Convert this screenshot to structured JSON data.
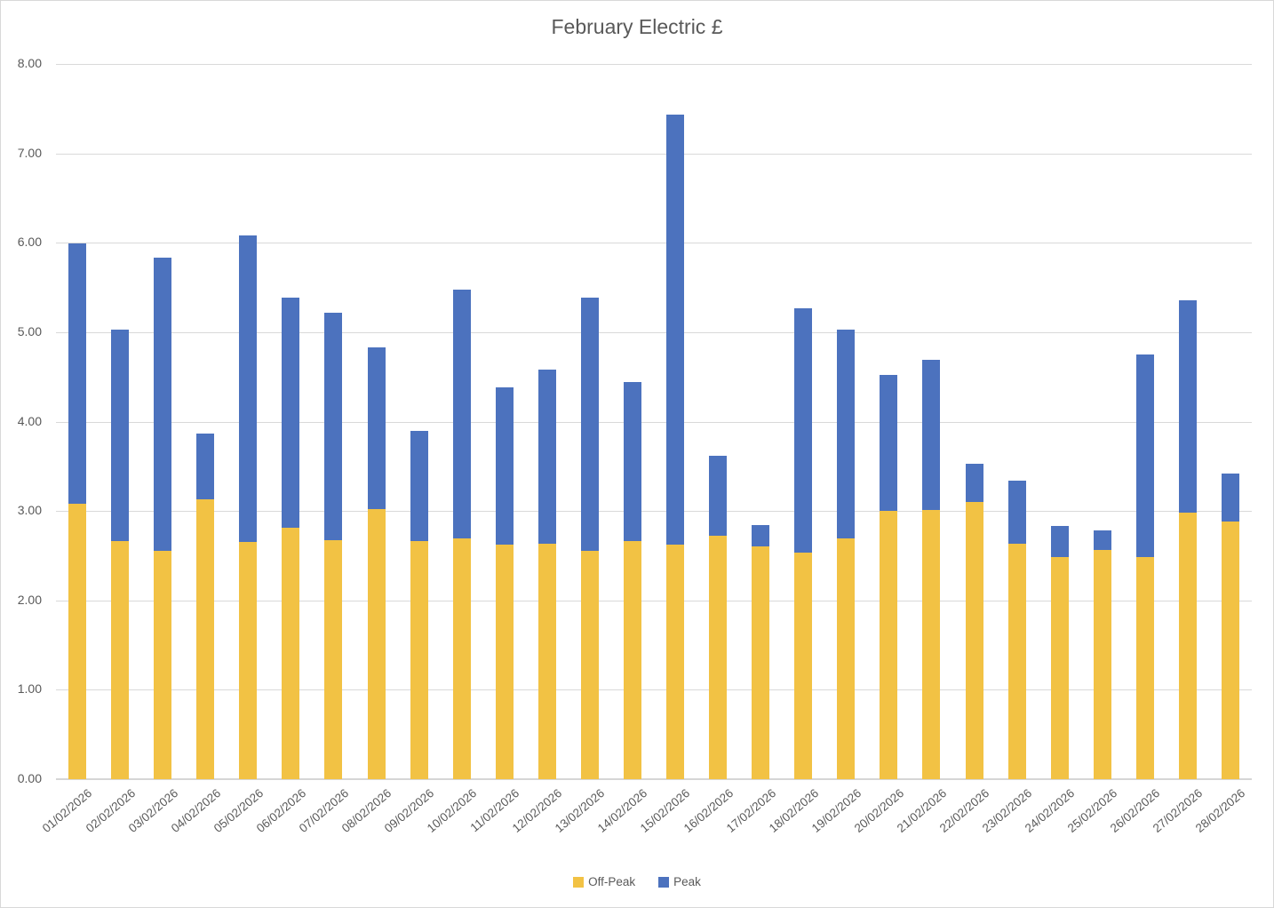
{
  "chart_data": {
    "type": "bar",
    "stacked": true,
    "title": "February Electric £",
    "xlabel": "",
    "ylabel": "",
    "ylim": [
      0,
      8
    ],
    "y_ticks": [
      "8.00",
      "7.00",
      "6.00",
      "5.00",
      "4.00",
      "3.00",
      "2.00",
      "1.00",
      "0.00"
    ],
    "grid": true,
    "legend_position": "bottom",
    "categories": [
      "01/02/2026",
      "02/02/2026",
      "03/02/2026",
      "04/02/2026",
      "05/02/2026",
      "06/02/2026",
      "07/02/2026",
      "08/02/2026",
      "09/02/2026",
      "10/02/2026",
      "11/02/2026",
      "12/02/2026",
      "13/02/2026",
      "14/02/2026",
      "15/02/2026",
      "16/02/2026",
      "17/02/2026",
      "18/02/2026",
      "19/02/2026",
      "20/02/2026",
      "21/02/2026",
      "22/02/2026",
      "23/02/2026",
      "24/02/2026",
      "25/02/2026",
      "26/02/2026",
      "27/02/2026",
      "28/02/2026"
    ],
    "series": [
      {
        "name": "Off-Peak",
        "color": "#F2C244",
        "values": [
          3.08,
          2.66,
          2.55,
          3.13,
          2.65,
          2.81,
          2.67,
          3.02,
          2.66,
          2.69,
          2.62,
          2.63,
          2.55,
          2.66,
          2.62,
          2.72,
          2.6,
          2.53,
          2.69,
          3.0,
          3.01,
          3.1,
          2.63,
          2.48,
          2.56,
          2.48,
          2.98,
          2.88
        ]
      },
      {
        "name": "Peak",
        "color": "#4C72BE",
        "values": [
          2.91,
          2.37,
          3.28,
          0.74,
          3.43,
          2.58,
          2.55,
          1.81,
          1.24,
          2.79,
          1.76,
          1.95,
          2.84,
          1.78,
          4.81,
          0.9,
          0.24,
          2.74,
          2.34,
          1.52,
          1.68,
          0.43,
          0.71,
          0.35,
          0.22,
          2.27,
          2.38,
          0.54
        ]
      }
    ]
  }
}
